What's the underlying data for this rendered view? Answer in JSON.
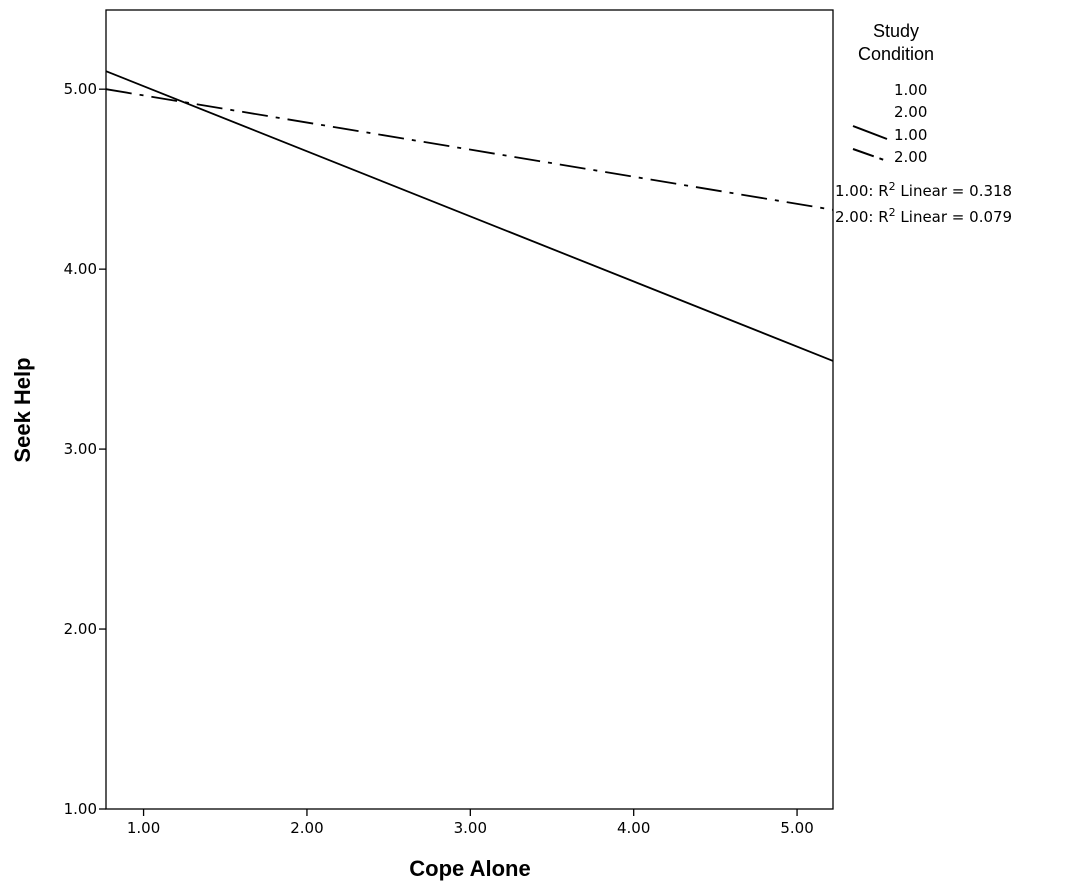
{
  "chart_data": {
    "type": "line",
    "xlabel": "Cope Alone",
    "ylabel": "Seek Help",
    "xlim": [
      0.77,
      5.22
    ],
    "ylim": [
      1.0,
      5.44
    ],
    "x_ticks": [
      1.0,
      2.0,
      3.0,
      4.0,
      5.0
    ],
    "x_tick_labels": [
      "1.00",
      "2.00",
      "3.00",
      "4.00",
      "5.00"
    ],
    "y_ticks": [
      1.0,
      2.0,
      3.0,
      4.0,
      5.0
    ],
    "y_tick_labels": [
      "1.00",
      "2.00",
      "3.00",
      "4.00",
      "5.00"
    ],
    "grid": false,
    "series": [
      {
        "name": "1.00",
        "style": "solid",
        "x": [
          0.77,
          5.22
        ],
        "y": [
          5.1,
          3.49
        ]
      },
      {
        "name": "2.00",
        "style": "dash-dot",
        "x": [
          0.77,
          5.22
        ],
        "y": [
          5.0,
          4.33
        ]
      }
    ],
    "legend": {
      "placement": "right",
      "title_lines": [
        "Study",
        "Condition"
      ],
      "marker_entries": [
        "1.00",
        "2.00"
      ],
      "line_entries": [
        {
          "label": "1.00",
          "style": "solid"
        },
        {
          "label": "2.00",
          "style": "dash-dot"
        }
      ],
      "fit_notes": [
        {
          "prefix": "1.00: R",
          "sup": "2",
          "suffix": " Linear = 0.318"
        },
        {
          "prefix": "2.00: R",
          "sup": "2",
          "suffix": " Linear = 0.079"
        }
      ]
    }
  }
}
